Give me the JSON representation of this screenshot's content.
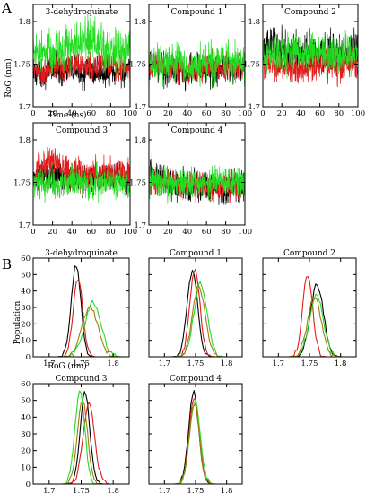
{
  "figure": {
    "panel_labels": [
      "A",
      "B"
    ],
    "panel_a_xlabel": "Time (ns)",
    "panel_a_ylabel": "RoG (nm)",
    "panel_b_xlabel": "RoG (nm)",
    "panel_b_ylabel": "Population"
  },
  "colors": {
    "black": "#000000",
    "red": "#e41a1c",
    "green": "#22dd22",
    "olive": "#a07a10"
  },
  "chart_data": [
    {
      "type": "line",
      "panel": "A",
      "title": "3-dehydroquinate",
      "xlabel": "Time (ns)",
      "ylabel": "RoG (nm)",
      "xlim": [
        0,
        100
      ],
      "ylim": [
        1.7,
        1.82
      ],
      "xticks": [
        0,
        20,
        40,
        60,
        80,
        100
      ],
      "yticks": [
        1.7,
        1.75,
        1.8
      ],
      "series": [
        {
          "color": "#000000",
          "mean": 1.742,
          "noise": 0.008,
          "x": [
            0,
            10,
            20,
            30,
            40,
            50,
            60,
            70,
            80,
            90,
            100
          ],
          "y": [
            1.74,
            1.74,
            1.745,
            1.742,
            1.744,
            1.74,
            1.742,
            1.74,
            1.738,
            1.74,
            1.742
          ]
        },
        {
          "color": "#e41a1c",
          "mean": 1.745,
          "noise": 0.008,
          "x": [
            0,
            10,
            20,
            30,
            40,
            50,
            60,
            70,
            80,
            90,
            100
          ],
          "y": [
            1.745,
            1.735,
            1.748,
            1.745,
            1.75,
            1.748,
            1.745,
            1.75,
            1.748,
            1.746,
            1.745
          ]
        },
        {
          "color": "#22dd22",
          "mean": 1.768,
          "noise": 0.012,
          "x": [
            0,
            10,
            20,
            30,
            40,
            50,
            60,
            70,
            80,
            90,
            100
          ],
          "y": [
            1.77,
            1.765,
            1.762,
            1.768,
            1.772,
            1.775,
            1.778,
            1.77,
            1.768,
            1.765,
            1.765
          ]
        }
      ]
    },
    {
      "type": "line",
      "panel": "A",
      "title": "Compound 1",
      "xlim": [
        0,
        100
      ],
      "ylim": [
        1.7,
        1.82
      ],
      "xticks": [
        0,
        20,
        40,
        60,
        80,
        100
      ],
      "yticks": [
        1.7,
        1.75,
        1.8
      ],
      "series": [
        {
          "color": "#000000",
          "mean": 1.745,
          "noise": 0.009,
          "x": [
            0,
            10,
            20,
            30,
            40,
            50,
            60,
            70,
            80,
            90,
            100
          ],
          "y": [
            1.745,
            1.75,
            1.742,
            1.745,
            1.74,
            1.745,
            1.745,
            1.742,
            1.745,
            1.745,
            1.745
          ]
        },
        {
          "color": "#e41a1c",
          "mean": 1.745,
          "noise": 0.008,
          "x": [
            0,
            10,
            20,
            30,
            40,
            50,
            60,
            70,
            80,
            90,
            100
          ],
          "y": [
            1.745,
            1.748,
            1.745,
            1.745,
            1.742,
            1.745,
            1.748,
            1.745,
            1.745,
            1.745,
            1.745
          ]
        },
        {
          "color": "#22dd22",
          "mean": 1.75,
          "noise": 0.011,
          "x": [
            0,
            10,
            20,
            30,
            40,
            50,
            60,
            70,
            80,
            90,
            100
          ],
          "y": [
            1.755,
            1.752,
            1.75,
            1.752,
            1.745,
            1.75,
            1.752,
            1.748,
            1.75,
            1.752,
            1.75
          ]
        }
      ]
    },
    {
      "type": "line",
      "panel": "A",
      "title": "Compound 2",
      "xlim": [
        0,
        100
      ],
      "ylim": [
        1.7,
        1.82
      ],
      "xticks": [
        0,
        20,
        40,
        60,
        80,
        100
      ],
      "yticks": [
        1.7,
        1.75,
        1.8
      ],
      "series": [
        {
          "color": "#000000",
          "mean": 1.762,
          "noise": 0.012,
          "x": [
            0,
            10,
            20,
            30,
            40,
            50,
            60,
            70,
            80,
            90,
            100
          ],
          "y": [
            1.765,
            1.775,
            1.765,
            1.762,
            1.76,
            1.762,
            1.762,
            1.765,
            1.762,
            1.765,
            1.765
          ]
        },
        {
          "color": "#e41a1c",
          "mean": 1.748,
          "noise": 0.009,
          "x": [
            0,
            10,
            20,
            30,
            40,
            50,
            60,
            70,
            80,
            90,
            100
          ],
          "y": [
            1.75,
            1.748,
            1.748,
            1.745,
            1.748,
            1.748,
            1.75,
            1.748,
            1.745,
            1.748,
            1.748
          ]
        },
        {
          "color": "#22dd22",
          "mean": 1.762,
          "noise": 0.011,
          "x": [
            0,
            10,
            20,
            30,
            40,
            50,
            60,
            70,
            80,
            90,
            100
          ],
          "y": [
            1.76,
            1.76,
            1.762,
            1.765,
            1.762,
            1.765,
            1.762,
            1.76,
            1.762,
            1.762,
            1.762
          ]
        }
      ]
    },
    {
      "type": "line",
      "panel": "A",
      "title": "Compound 3",
      "xlim": [
        0,
        100
      ],
      "ylim": [
        1.7,
        1.82
      ],
      "xticks": [
        0,
        20,
        40,
        60,
        80,
        100
      ],
      "yticks": [
        1.7,
        1.75,
        1.8
      ],
      "series": [
        {
          "color": "#000000",
          "mean": 1.755,
          "noise": 0.008,
          "x": [
            0,
            10,
            20,
            30,
            40,
            50,
            60,
            70,
            80,
            90,
            100
          ],
          "y": [
            1.75,
            1.76,
            1.762,
            1.755,
            1.755,
            1.755,
            1.752,
            1.755,
            1.755,
            1.755,
            1.755
          ]
        },
        {
          "color": "#e41a1c",
          "mean": 1.762,
          "noise": 0.009,
          "x": [
            0,
            10,
            20,
            30,
            40,
            50,
            60,
            70,
            80,
            90,
            100
          ],
          "y": [
            1.76,
            1.765,
            1.775,
            1.765,
            1.762,
            1.76,
            1.762,
            1.76,
            1.762,
            1.762,
            1.76
          ]
        },
        {
          "color": "#22dd22",
          "mean": 1.75,
          "noise": 0.009,
          "x": [
            0,
            10,
            20,
            30,
            40,
            50,
            60,
            70,
            80,
            90,
            100
          ],
          "y": [
            1.75,
            1.748,
            1.75,
            1.75,
            1.752,
            1.75,
            1.748,
            1.75,
            1.75,
            1.748,
            1.75
          ]
        }
      ]
    },
    {
      "type": "line",
      "panel": "A",
      "title": "Compound 4",
      "xlim": [
        0,
        100
      ],
      "ylim": [
        1.7,
        1.82
      ],
      "xticks": [
        0,
        20,
        40,
        60,
        80,
        100
      ],
      "yticks": [
        1.7,
        1.75,
        1.8
      ],
      "series": [
        {
          "color": "#000000",
          "mean": 1.748,
          "noise": 0.009,
          "x": [
            0,
            10,
            20,
            30,
            40,
            50,
            60,
            70,
            80,
            90,
            100
          ],
          "y": [
            1.765,
            1.755,
            1.75,
            1.748,
            1.748,
            1.748,
            1.745,
            1.745,
            1.742,
            1.745,
            1.745
          ]
        },
        {
          "color": "#e41a1c",
          "mean": 1.748,
          "noise": 0.008,
          "x": [
            0,
            10,
            20,
            30,
            40,
            50,
            60,
            70,
            80,
            90,
            100
          ],
          "y": [
            1.75,
            1.75,
            1.748,
            1.748,
            1.748,
            1.748,
            1.745,
            1.745,
            1.745,
            1.748,
            1.748
          ]
        },
        {
          "color": "#22dd22",
          "mean": 1.75,
          "noise": 0.009,
          "x": [
            0,
            10,
            20,
            30,
            40,
            50,
            60,
            70,
            80,
            90,
            100
          ],
          "y": [
            1.755,
            1.752,
            1.75,
            1.75,
            1.75,
            1.75,
            1.748,
            1.75,
            1.75,
            1.75,
            1.75
          ]
        }
      ]
    },
    {
      "type": "line",
      "panel": "B",
      "title": "3-dehydroquinate",
      "xlabel": "RoG (nm)",
      "ylabel": "Population",
      "xlim": [
        1.675,
        1.825
      ],
      "ylim": [
        0,
        60
      ],
      "xticks": [
        1.7,
        1.75,
        1.8
      ],
      "yticks": [
        0,
        10,
        20,
        30,
        40,
        50,
        60
      ],
      "series": [
        {
          "color": "#000000",
          "center": 1.742,
          "sigma": 0.0075,
          "peak": 56
        },
        {
          "color": "#e41a1c",
          "center": 1.745,
          "sigma": 0.0075,
          "peak": 48
        },
        {
          "color": "#22dd22",
          "center": 1.768,
          "sigma": 0.0125,
          "peak": 33
        },
        {
          "color": "#a07a10",
          "center": 1.764,
          "sigma": 0.0125,
          "peak": 30
        }
      ]
    },
    {
      "type": "line",
      "panel": "B",
      "title": "Compound 1",
      "xlim": [
        1.675,
        1.825
      ],
      "ylim": [
        0,
        60
      ],
      "xticks": [
        1.7,
        1.75,
        1.8
      ],
      "yticks": [
        0,
        10,
        20,
        30,
        40,
        50,
        60
      ],
      "series": [
        {
          "color": "#000000",
          "center": 1.745,
          "sigma": 0.0085,
          "peak": 52
        },
        {
          "color": "#e41a1c",
          "center": 1.749,
          "sigma": 0.008,
          "peak": 54
        },
        {
          "color": "#22dd22",
          "center": 1.758,
          "sigma": 0.0105,
          "peak": 45
        },
        {
          "color": "#a07a10",
          "center": 1.755,
          "sigma": 0.01,
          "peak": 43
        }
      ]
    },
    {
      "type": "line",
      "panel": "B",
      "title": "Compound 2",
      "xlim": [
        1.675,
        1.825
      ],
      "ylim": [
        0,
        60
      ],
      "xticks": [
        1.7,
        1.75,
        1.8
      ],
      "yticks": [
        0,
        10,
        20,
        30,
        40,
        50,
        60
      ],
      "series": [
        {
          "color": "#000000",
          "center": 1.762,
          "sigma": 0.0105,
          "peak": 44
        },
        {
          "color": "#e41a1c",
          "center": 1.747,
          "sigma": 0.008,
          "peak": 50
        },
        {
          "color": "#22dd22",
          "center": 1.761,
          "sigma": 0.011,
          "peak": 38
        },
        {
          "color": "#a07a10",
          "center": 1.758,
          "sigma": 0.011,
          "peak": 36
        }
      ]
    },
    {
      "type": "line",
      "panel": "B",
      "title": "Compound 3",
      "xlabel": "Compound 3",
      "ylabel": "Population",
      "xlim": [
        1.675,
        1.825
      ],
      "ylim": [
        0,
        60
      ],
      "xticks": [
        1.7,
        1.75,
        1.8
      ],
      "yticks": [
        0,
        10,
        20,
        30,
        40,
        50,
        60
      ],
      "series": [
        {
          "color": "#000000",
          "center": 1.756,
          "sigma": 0.0075,
          "peak": 55
        },
        {
          "color": "#e41a1c",
          "center": 1.762,
          "sigma": 0.009,
          "peak": 48
        },
        {
          "color": "#22dd22",
          "center": 1.748,
          "sigma": 0.0075,
          "peak": 57
        },
        {
          "color": "#a07a10",
          "center": 1.752,
          "sigma": 0.008,
          "peak": 50
        }
      ]
    },
    {
      "type": "line",
      "panel": "B",
      "title": "Compound 4",
      "xlabel": "Compound 4",
      "xlim": [
        1.675,
        1.825
      ],
      "ylim": [
        0,
        60
      ],
      "xticks": [
        1.7,
        1.75,
        1.8
      ],
      "yticks": [
        0,
        10,
        20,
        30,
        40,
        50,
        60
      ],
      "series": [
        {
          "color": "#000000",
          "center": 1.747,
          "sigma": 0.008,
          "peak": 55
        },
        {
          "color": "#e41a1c",
          "center": 1.748,
          "sigma": 0.008,
          "peak": 52
        },
        {
          "color": "#22dd22",
          "center": 1.749,
          "sigma": 0.0085,
          "peak": 50
        },
        {
          "color": "#a07a10",
          "center": 1.748,
          "sigma": 0.008,
          "peak": 48
        }
      ]
    }
  ]
}
